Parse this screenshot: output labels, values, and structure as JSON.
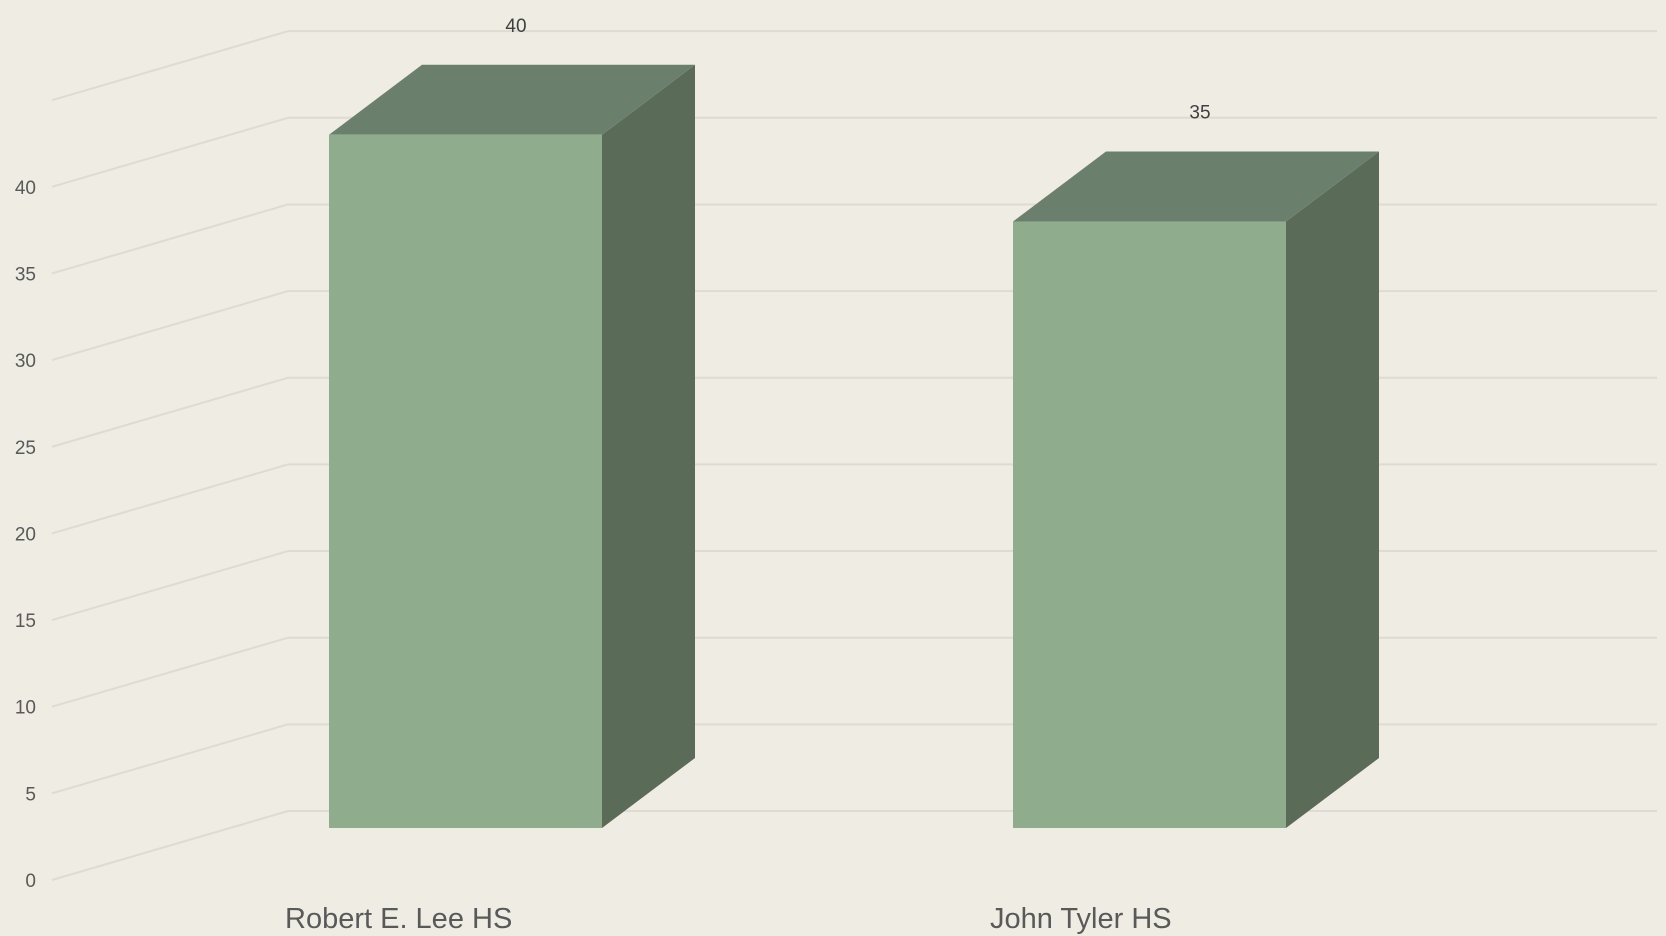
{
  "chart_data": {
    "type": "bar",
    "style": "3d-column",
    "categories": [
      "Robert E. Lee HS",
      "John Tyler HS"
    ],
    "series": [
      {
        "values": [
          40,
          35
        ]
      }
    ],
    "data_labels": [
      "40",
      "35"
    ],
    "yticks": [
      "0",
      "5",
      "10",
      "15",
      "20",
      "25",
      "30",
      "35",
      "40"
    ],
    "ylim": [
      0,
      45
    ],
    "grid": true,
    "legend": "none",
    "title": "",
    "xlabel": "",
    "ylabel": "",
    "colors": {
      "background": "#efece3",
      "bar_front": "#8fad8d",
      "bar_top": "#6a806c",
      "bar_side": "#5a6b58",
      "gridline": "#dedbd2"
    }
  }
}
